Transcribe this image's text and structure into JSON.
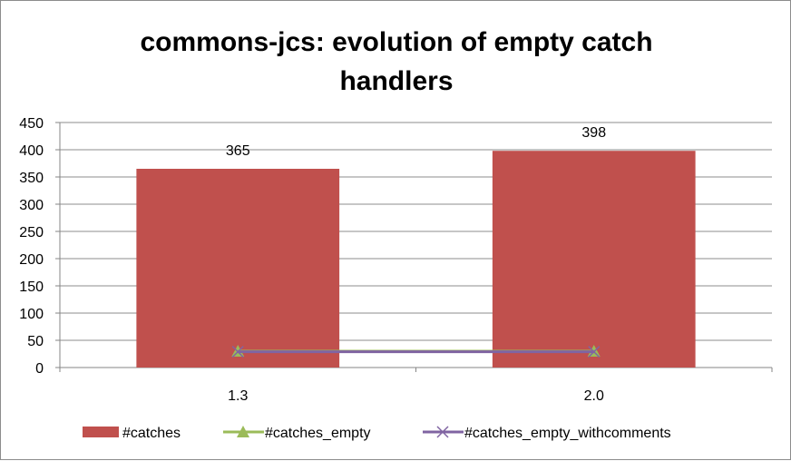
{
  "chart_data": {
    "type": "bar",
    "title_lines": [
      "commons-jcs: evolution of empty catch",
      "handlers"
    ],
    "xlabel": "",
    "ylabel": "",
    "categories": [
      "1.3",
      "2.0"
    ],
    "ylim": [
      0,
      450
    ],
    "yticks": [
      0,
      50,
      100,
      150,
      200,
      250,
      300,
      350,
      400,
      450
    ],
    "grid": true,
    "legend_position": "bottom",
    "series": [
      {
        "name": "#catches",
        "type": "bar",
        "values": [
          365,
          398
        ],
        "data_labels": [
          "365",
          "398"
        ],
        "color": "#c0504d"
      },
      {
        "name": "#catches_empty",
        "type": "line",
        "marker": "triangle",
        "values": [
          30,
          30
        ],
        "color": "#9bbb59"
      },
      {
        "name": "#catches_empty_withcomments",
        "type": "line",
        "marker": "x",
        "values": [
          29,
          29
        ],
        "color": "#8064a2"
      }
    ]
  }
}
